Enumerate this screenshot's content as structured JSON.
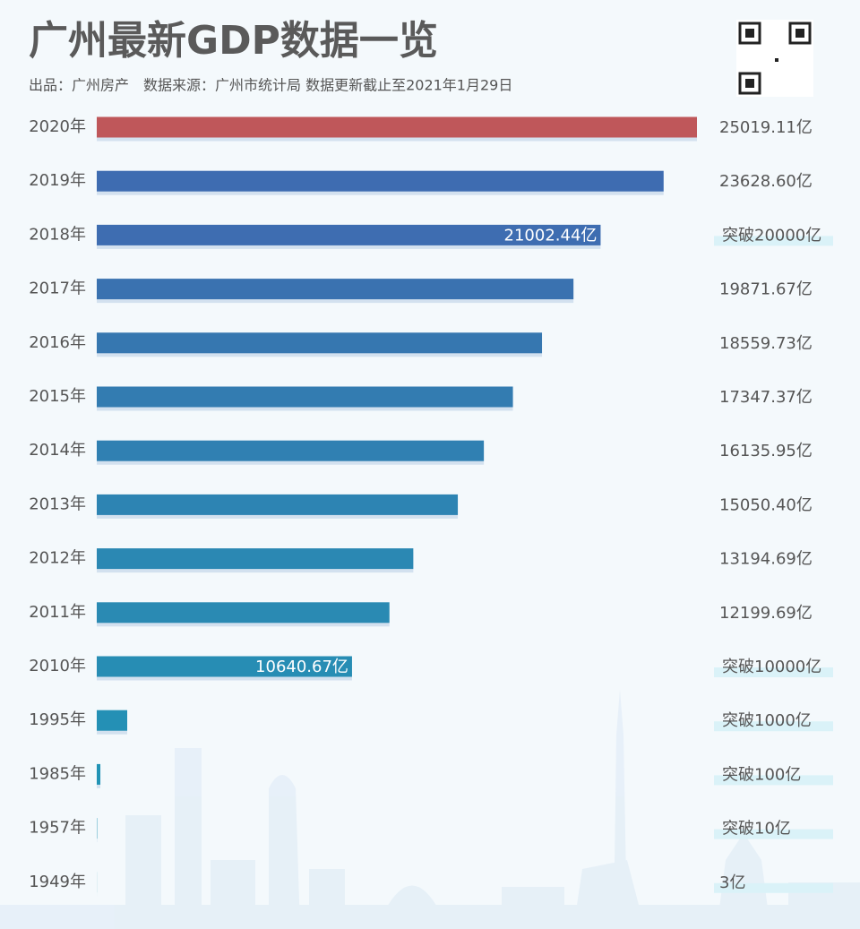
{
  "chart_data": {
    "type": "bar",
    "orientation": "horizontal",
    "title": "广州最新GDP数据一览",
    "subtitle": "出品：广州房产　数据来源：广州市统计局  数据更新截止至2021年1月29日",
    "categories": [
      "2020年",
      "2019年",
      "2018年",
      "2017年",
      "2016年",
      "2015年",
      "2014年",
      "2013年",
      "2012年",
      "2011年",
      "2010年",
      "1995年",
      "1985年",
      "1957年",
      "1949年"
    ],
    "values": [
      25019.11,
      23628.6,
      21002.44,
      19871.67,
      18559.73,
      17347.37,
      16135.95,
      15050.4,
      13194.69,
      12199.69,
      10640.67,
      1270,
      150,
      15,
      3
    ],
    "value_labels": [
      "25019.11亿",
      "23628.60亿",
      "21002.44亿",
      "19871.67亿",
      "18559.73亿",
      "17347.37亿",
      "16135.95亿",
      "15050.40亿",
      "13194.69亿",
      "12199.69亿",
      "10640.67亿",
      null,
      null,
      null,
      "3亿"
    ],
    "milestone_labels": [
      null,
      null,
      "突破20000亿",
      null,
      null,
      null,
      null,
      null,
      null,
      null,
      "突破10000亿",
      "突破1000亿",
      "突破100亿",
      "突破10亿",
      null
    ],
    "colors": [
      "#bf575a",
      "#3e6cb1",
      "#3e6db1",
      "#3a72b0",
      "#3677b0",
      "#337cb1",
      "#3080b2",
      "#2d84b3",
      "#2b88b3",
      "#2a8ab3",
      "#278db4",
      "#2490b5",
      "#2193b5",
      "#1f95b5",
      "#1e98b5"
    ]
  }
}
